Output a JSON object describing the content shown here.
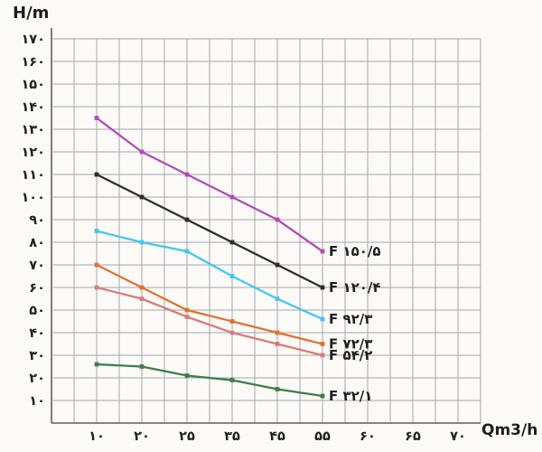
{
  "chart_data": {
    "type": "line",
    "title": "",
    "ylabel": "H/m",
    "xlabel": "Qm3/h",
    "ylim": [
      0,
      170
    ],
    "grid": true,
    "grid_color": "#a4a4ae",
    "axis_color": "#5c5c63",
    "background_color": "#fbfaf7",
    "y_ticks": [
      {
        "value": 10,
        "label": "۱۰"
      },
      {
        "value": 20,
        "label": "۲۰"
      },
      {
        "value": 30,
        "label": "۳۰"
      },
      {
        "value": 40,
        "label": "۴۰"
      },
      {
        "value": 50,
        "label": "۵۰"
      },
      {
        "value": 60,
        "label": "۶۰"
      },
      {
        "value": 70,
        "label": "۷۰"
      },
      {
        "value": 80,
        "label": "۸۰"
      },
      {
        "value": 90,
        "label": "۹۰"
      },
      {
        "value": 100,
        "label": "۱۰۰"
      },
      {
        "value": 110,
        "label": "۱۱۰"
      },
      {
        "value": 120,
        "label": "۱۲۰"
      },
      {
        "value": 130,
        "label": "۱۳۰"
      },
      {
        "value": 140,
        "label": "۱۴۰"
      },
      {
        "value": 150,
        "label": "۱۵۰"
      },
      {
        "value": 160,
        "label": "۱۶۰"
      },
      {
        "value": 170,
        "label": "۱۷۰"
      }
    ],
    "x_ticks": [
      {
        "value": 10,
        "label": "۱۰"
      },
      {
        "value": 20,
        "label": "۲۰"
      },
      {
        "value": 25,
        "label": "۲۵"
      },
      {
        "value": 35,
        "label": "۳۵"
      },
      {
        "value": 45,
        "label": "۴۵"
      },
      {
        "value": 55,
        "label": "۵۵"
      },
      {
        "value": 60,
        "label": "۶۰"
      },
      {
        "value": 65,
        "label": "۶۵"
      },
      {
        "value": 70,
        "label": "۷۰"
      }
    ],
    "x": [
      10,
      20,
      25,
      35,
      45,
      55
    ],
    "series": [
      {
        "name": "F 150/5",
        "label": "F ۱۵۰/۵",
        "color": "#b24ab8",
        "values": [
          135,
          120,
          110,
          100,
          90,
          76
        ]
      },
      {
        "name": "F 120/4",
        "label": "F ۱۲۰/۴",
        "color": "#2d2d30",
        "values": [
          110,
          100,
          90,
          80,
          70,
          60
        ]
      },
      {
        "name": "F 92/3",
        "label": "F ۹۲/۳",
        "color": "#41c6ef",
        "values": [
          85,
          80,
          76,
          65,
          55,
          46
        ]
      },
      {
        "name": "F 72/3",
        "label": "F ۷۲/۳",
        "color": "#df7230",
        "values": [
          70,
          60,
          50,
          45,
          40,
          35
        ]
      },
      {
        "name": "F 54/2",
        "label": "F ۵۴/۲",
        "color": "#d87c7c",
        "values": [
          60,
          55,
          47,
          40,
          35,
          30
        ]
      },
      {
        "name": "F 32/1",
        "label": "F ۳۲/۱",
        "color": "#3f7d49",
        "values": [
          26,
          25,
          21,
          19,
          15,
          12
        ]
      }
    ],
    "legend_position": "right-of-line-ends"
  }
}
